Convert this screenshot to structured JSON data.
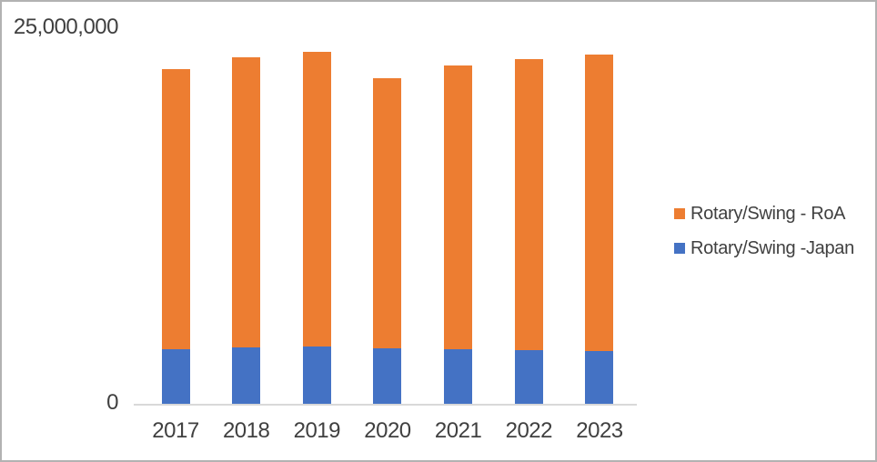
{
  "chart_data": {
    "type": "bar",
    "stacked": true,
    "title": "",
    "xlabel": "",
    "ylabel": "",
    "grid": false,
    "legend_position": "right",
    "ylim": [
      0,
      25000000
    ],
    "y_axis": {
      "max_label": "25,000,000",
      "min_label": "0"
    },
    "categories": [
      "2017",
      "2018",
      "2019",
      "2020",
      "2021",
      "2022",
      "2023"
    ],
    "series": [
      {
        "key": "japan",
        "name": "Rotary/Swing -Japan",
        "color": "#4472C4",
        "values": [
          3700000,
          3800000,
          3850000,
          3750000,
          3700000,
          3600000,
          3550000
        ]
      },
      {
        "key": "roa",
        "name": "Rotary/Swing - RoA",
        "color": "#ED7D31",
        "values": [
          18500000,
          19200000,
          19550000,
          17850000,
          18800000,
          19300000,
          19650000
        ]
      }
    ],
    "legend": [
      {
        "key": "roa",
        "label": "Rotary/Swing - RoA",
        "color": "#ED7D31"
      },
      {
        "key": "japan",
        "label": "Rotary/Swing -Japan",
        "color": "#4472C4"
      }
    ]
  },
  "colors": {
    "text": "#404040",
    "axis_line": "#d9d9d9",
    "border": "#b2b2b2",
    "background": "#ffffff"
  }
}
